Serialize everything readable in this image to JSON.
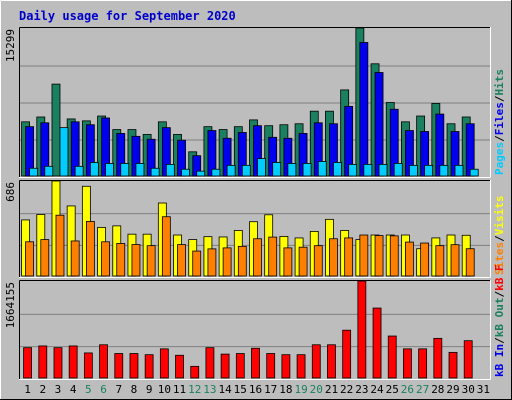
{
  "title": "Daily usage for September 2020",
  "colors": {
    "background": "#bdbdbd",
    "title": "#0000cc",
    "hits": "#1a8060",
    "files": "#0000ee",
    "pages": "#00ccff",
    "visits": "#ffff00",
    "sites": "#ff8000",
    "kbin": "#1a8060",
    "kbout": "#0000ee",
    "kbf": "#ff0000"
  },
  "chart_data": [
    {
      "type": "bar",
      "name": "hits-files-pages",
      "max_label": "15299",
      "legend": [
        {
          "key": "hits",
          "label": "Hits",
          "color": "#1a8060"
        },
        {
          "key": "files",
          "label": "Files",
          "color": "#0000ee"
        },
        {
          "key": "pages",
          "label": "Pages",
          "color": "#00ccff"
        }
      ],
      "ylim": [
        0,
        15299
      ],
      "categories": [
        "1",
        "2",
        "3",
        "4",
        "5",
        "6",
        "7",
        "8",
        "9",
        "10",
        "11",
        "12",
        "13",
        "14",
        "15",
        "16",
        "17",
        "18",
        "19",
        "20",
        "21",
        "22",
        "23",
        "24",
        "25",
        "26",
        "27",
        "28",
        "29",
        "30",
        "31"
      ],
      "series": [
        {
          "key": "hits",
          "values": [
            5600,
            6100,
            9500,
            5900,
            5700,
            6200,
            4800,
            4800,
            4300,
            5600,
            4300,
            2500,
            5100,
            4800,
            5100,
            5800,
            5200,
            5300,
            5400,
            6700,
            6700,
            8900,
            15299,
            11600,
            7600,
            5600,
            6200,
            7500,
            5400,
            6100,
            0
          ]
        },
        {
          "key": "files",
          "values": [
            5100,
            5500,
            0,
            5600,
            5300,
            6000,
            4400,
            4100,
            3800,
            5000,
            3700,
            2100,
            4700,
            3900,
            4500,
            5200,
            4000,
            3900,
            4400,
            5500,
            5400,
            7200,
            13800,
            10700,
            6900,
            4700,
            4600,
            6400,
            4600,
            5400,
            0
          ]
        },
        {
          "key": "pages",
          "values": [
            800,
            1000,
            5000,
            1000,
            1400,
            1300,
            1300,
            1300,
            800,
            1200,
            700,
            500,
            700,
            1100,
            1100,
            1800,
            1400,
            1300,
            1300,
            1500,
            1400,
            1200,
            1200,
            1200,
            1300,
            1100,
            1100,
            1100,
            1100,
            700,
            0
          ]
        }
      ]
    },
    {
      "type": "bar",
      "name": "visits-sites",
      "max_label": "686",
      "legend": [
        {
          "key": "visits",
          "label": "Visits",
          "color": "#ffff00"
        },
        {
          "key": "sites",
          "label": "Sites",
          "color": "#ff8000"
        }
      ],
      "ylim": [
        0,
        686
      ],
      "categories": [
        "1",
        "2",
        "3",
        "4",
        "5",
        "6",
        "7",
        "8",
        "9",
        "10",
        "11",
        "12",
        "13",
        "14",
        "15",
        "16",
        "17",
        "18",
        "19",
        "20",
        "21",
        "22",
        "23",
        "24",
        "25",
        "26",
        "27",
        "28",
        "29",
        "30",
        "31"
      ],
      "series": [
        {
          "key": "visits",
          "values": [
            405,
            444,
            686,
            506,
            648,
            351,
            362,
            302,
            302,
            527,
            296,
            263,
            284,
            282,
            329,
            392,
            442,
            286,
            275,
            322,
            409,
            329,
            263,
            296,
            296,
            296,
            197,
            275,
            296,
            294,
            0
          ]
        },
        {
          "key": "sites",
          "values": [
            247,
            263,
            439,
            253,
            394,
            247,
            235,
            227,
            219,
            428,
            227,
            180,
            196,
            203,
            214,
            269,
            281,
            203,
            208,
            219,
            269,
            275,
            296,
            292,
            290,
            245,
            238,
            219,
            226,
            197,
            0
          ]
        }
      ]
    },
    {
      "type": "bar",
      "name": "kbytes",
      "max_label": "1664155",
      "legend": [
        {
          "key": "kbf",
          "label": "kB F",
          "color": "#ff0000"
        },
        {
          "key": "kbout",
          "label": "kB Out",
          "color": "#1a8060"
        },
        {
          "key": "kbin",
          "label": "kB In",
          "color": "#0000ee"
        }
      ],
      "ylim": [
        0,
        1664155
      ],
      "categories": [
        "1",
        "2",
        "3",
        "4",
        "5",
        "6",
        "7",
        "8",
        "9",
        "10",
        "11",
        "12",
        "13",
        "14",
        "15",
        "16",
        "17",
        "18",
        "19",
        "20",
        "21",
        "22",
        "23",
        "24",
        "25",
        "26",
        "27",
        "28",
        "29",
        "30",
        "31"
      ],
      "series": [
        {
          "key": "kbf",
          "values": [
            520000,
            550000,
            520000,
            550000,
            430000,
            570000,
            420000,
            420000,
            400000,
            500000,
            390000,
            200000,
            520000,
            410000,
            420000,
            510000,
            420000,
            400000,
            400000,
            570000,
            570000,
            820000,
            1664155,
            1200000,
            720000,
            500000,
            500000,
            680000,
            440000,
            640000,
            0
          ]
        }
      ]
    }
  ],
  "x_label_colors": {
    "weekday": "#000000",
    "weekend": "#1a8060"
  },
  "weekend_days": [
    "5",
    "6",
    "12",
    "13",
    "19",
    "20",
    "26",
    "27"
  ]
}
